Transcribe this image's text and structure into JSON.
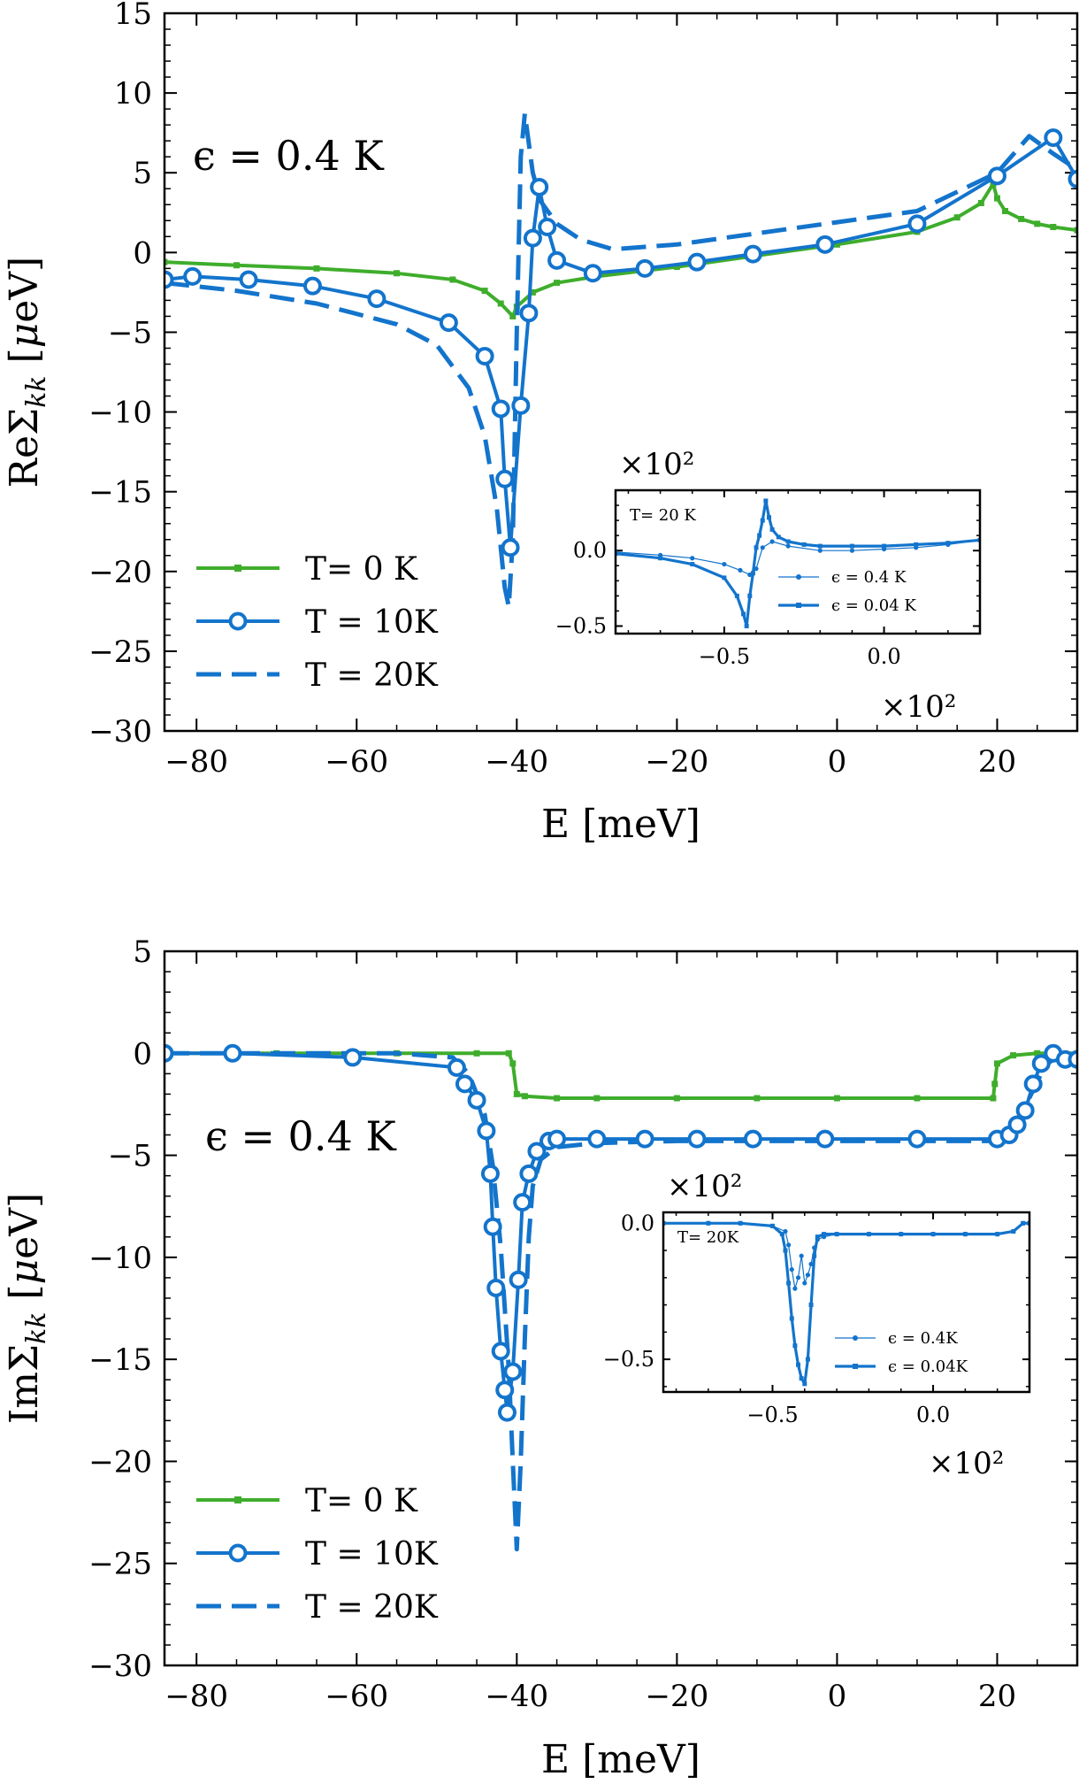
{
  "colors": {
    "green": "#3fad2c",
    "blue": "#1374cc",
    "axis": "#000000"
  },
  "chart_data": [
    {
      "type": "line",
      "xlabel": "E [meV]",
      "ylabel": "ReΣ_kk  [μeV]",
      "xlim": [
        -84,
        30
      ],
      "ylim": [
        -30,
        15
      ],
      "xticks": [
        -80,
        -60,
        -40,
        -20,
        0,
        20
      ],
      "xtick_labels": [
        "−80",
        "−60",
        "−40",
        "−20",
        "0",
        "20"
      ],
      "yticks": [
        15,
        10,
        5,
        0,
        -5,
        -10,
        -15,
        -20,
        -25,
        -30
      ],
      "ytick_labels": [
        "15",
        "10",
        "5",
        "0",
        "−5",
        "−10",
        "−15",
        "−20",
        "−25",
        "−30"
      ],
      "annotation": "ϵ = 0.4 K",
      "legend_position": "lower-left",
      "series": [
        {
          "name": "T= 0 K",
          "style": "solid-square",
          "color": "green",
          "x": [
            -84,
            -75,
            -65,
            -55,
            -48,
            -44,
            -42,
            -40.5,
            -40,
            -38,
            -35,
            -30,
            -20,
            -10,
            0,
            10,
            15,
            18,
            19.5,
            20,
            21,
            23,
            25,
            27,
            30
          ],
          "y": [
            -0.6,
            -0.8,
            -1.0,
            -1.3,
            -1.7,
            -2.4,
            -3.2,
            -4.0,
            -3.4,
            -2.5,
            -1.9,
            -1.5,
            -0.9,
            -0.2,
            0.5,
            1.3,
            2.2,
            3.1,
            4.3,
            3.4,
            2.6,
            2.1,
            1.8,
            1.6,
            1.4
          ]
        },
        {
          "name": "T = 10K",
          "style": "solid-circle",
          "color": "blue",
          "x": [
            -84,
            -80.5,
            -73.5,
            -65.5,
            -57.5,
            -48.5,
            -44,
            -42,
            -41.5,
            -40.8,
            -39.5,
            -38.5,
            -38,
            -37.2,
            -36.2,
            -35,
            -30.5,
            -24,
            -17.5,
            -10.5,
            -1.5,
            10,
            20,
            27,
            30
          ],
          "y": [
            -1.7,
            -1.5,
            -1.7,
            -2.1,
            -2.9,
            -4.4,
            -6.5,
            -9.8,
            -14.2,
            -18.5,
            -9.6,
            -3.8,
            0.9,
            4.1,
            1.6,
            -0.5,
            -1.3,
            -1.0,
            -0.6,
            -0.1,
            0.5,
            1.8,
            4.8,
            7.2,
            4.6
          ]
        },
        {
          "name": "T = 20K",
          "style": "dashed",
          "color": "blue",
          "x": [
            -84,
            -75,
            -65,
            -55,
            -50,
            -46,
            -44,
            -42.5,
            -41.5,
            -41,
            -40.5,
            -40,
            -39.5,
            -39,
            -38,
            -37,
            -35,
            -32,
            -28,
            -20,
            -10,
            0,
            10,
            20,
            24,
            27,
            30
          ],
          "y": [
            -1.9,
            -2.4,
            -3.2,
            -4.5,
            -5.8,
            -8.5,
            -11.5,
            -16.0,
            -21.0,
            -22.2,
            -18.0,
            -5.0,
            6.0,
            8.7,
            5.0,
            3.2,
            1.8,
            0.8,
            0.2,
            0.5,
            1.2,
            1.9,
            2.6,
            5.0,
            7.3,
            6.2,
            5.2
          ]
        }
      ],
      "inset": {
        "tag": "T= 20 K",
        "scale_label": "×10²",
        "xlim": [
          -0.84,
          0.3
        ],
        "ylim": [
          -0.55,
          0.4
        ],
        "xticks": [
          -0.5,
          0.0
        ],
        "xtick_labels": [
          "−0.5",
          "0.0"
        ],
        "yticks": [
          0.0,
          -0.5
        ],
        "ytick_labels": [
          "0.0",
          "−0.5"
        ],
        "legend_position": "lower-right",
        "series": [
          {
            "name": "ϵ = 0.4 K",
            "style": "thin-dot",
            "x": [
              -0.84,
              -0.7,
              -0.6,
              -0.5,
              -0.45,
              -0.42,
              -0.4,
              -0.38,
              -0.35,
              -0.3,
              -0.2,
              -0.1,
              0.0,
              0.1,
              0.2,
              0.3
            ],
            "y": [
              -0.01,
              -0.03,
              -0.05,
              -0.09,
              -0.13,
              -0.16,
              -0.12,
              0.02,
              0.06,
              0.03,
              0.0,
              0.0,
              0.01,
              0.02,
              0.04,
              0.07
            ]
          },
          {
            "name": "ϵ = 0.04 K",
            "style": "thick-square",
            "x": [
              -0.84,
              -0.7,
              -0.6,
              -0.5,
              -0.46,
              -0.44,
              -0.43,
              -0.42,
              -0.41,
              -0.4,
              -0.39,
              -0.38,
              -0.37,
              -0.36,
              -0.35,
              -0.33,
              -0.3,
              -0.25,
              -0.2,
              -0.1,
              0.0,
              0.1,
              0.2,
              0.3
            ],
            "y": [
              -0.02,
              -0.05,
              -0.09,
              -0.18,
              -0.3,
              -0.42,
              -0.5,
              -0.3,
              -0.15,
              0.02,
              0.1,
              0.2,
              0.33,
              0.22,
              0.14,
              0.09,
              0.06,
              0.04,
              0.03,
              0.03,
              0.03,
              0.04,
              0.05,
              0.07
            ]
          }
        ]
      }
    },
    {
      "type": "line",
      "xlabel": "E [meV]",
      "ylabel": "ImΣ_kk  [μeV]",
      "xlim": [
        -84,
        30
      ],
      "ylim": [
        -30,
        5
      ],
      "xticks": [
        -80,
        -60,
        -40,
        -20,
        0,
        20
      ],
      "xtick_labels": [
        "−80",
        "−60",
        "−40",
        "−20",
        "0",
        "20"
      ],
      "yticks": [
        5,
        0,
        -5,
        -10,
        -15,
        -20,
        -25,
        -30
      ],
      "ytick_labels": [
        "5",
        "0",
        "−5",
        "−10",
        "−15",
        "−20",
        "−25",
        "−30"
      ],
      "annotation": "ϵ = 0.4 K",
      "legend_position": "lower-left",
      "series": [
        {
          "name": "T= 0 K",
          "style": "solid-square",
          "color": "green",
          "x": [
            -84,
            -70,
            -55,
            -45,
            -41,
            -40.5,
            -40,
            -39,
            -35,
            -30,
            -20,
            -10,
            0,
            10,
            19.5,
            19.7,
            20,
            22,
            25,
            30
          ],
          "y": [
            0,
            0,
            0,
            0,
            0,
            -0.5,
            -2.0,
            -2.1,
            -2.2,
            -2.2,
            -2.2,
            -2.2,
            -2.2,
            -2.2,
            -2.2,
            -1.5,
            -0.5,
            -0.1,
            0,
            0
          ]
        },
        {
          "name": "T = 10K",
          "style": "solid-circle",
          "color": "blue",
          "x": [
            -84,
            -75.5,
            -60.5,
            -47.5,
            -46.5,
            -45,
            -43.8,
            -43.3,
            -43,
            -42.6,
            -42,
            -41.5,
            -41.2,
            -40.5,
            -39.8,
            -39.3,
            -38.5,
            -37.5,
            -36,
            -35,
            -30,
            -24,
            -17.5,
            -10.5,
            -1.5,
            10,
            20,
            21.5,
            22.5,
            23.5,
            24.5,
            25.5,
            27,
            28.5,
            30
          ],
          "y": [
            0,
            0,
            -0.2,
            -0.7,
            -1.5,
            -2.3,
            -3.8,
            -5.9,
            -8.5,
            -11.5,
            -14.6,
            -16.5,
            -17.6,
            -15.6,
            -11.1,
            -7.3,
            -5.9,
            -4.8,
            -4.3,
            -4.2,
            -4.2,
            -4.2,
            -4.2,
            -4.2,
            -4.2,
            -4.2,
            -4.2,
            -4.0,
            -3.5,
            -2.8,
            -1.5,
            -0.5,
            0.0,
            -0.3,
            -0.3
          ]
        },
        {
          "name": "T = 20K",
          "style": "dashed",
          "color": "blue",
          "x": [
            -84,
            -70,
            -55,
            -48,
            -46,
            -44,
            -43,
            -42,
            -41,
            -40.5,
            -40,
            -39.5,
            -39,
            -38.5,
            -38,
            -37,
            -35,
            -30,
            -20,
            -10,
            0,
            10,
            20,
            22,
            24,
            26,
            28,
            30
          ],
          "y": [
            0,
            0,
            0,
            -0.2,
            -1.0,
            -3.0,
            -5.5,
            -9.5,
            -15.5,
            -20.0,
            -24.3,
            -20.0,
            -14.0,
            -9.0,
            -6.5,
            -5.2,
            -4.6,
            -4.4,
            -4.3,
            -4.3,
            -4.3,
            -4.3,
            -4.3,
            -3.8,
            -2.2,
            -0.6,
            0,
            0
          ]
        }
      ],
      "inset": {
        "tag": "T= 20K",
        "scale_label": "×10²",
        "xlim": [
          -0.84,
          0.3
        ],
        "ylim": [
          -0.62,
          0.04
        ],
        "xticks": [
          -0.5,
          0.0
        ],
        "xtick_labels": [
          "−0.5",
          "0.0"
        ],
        "yticks": [
          0.0,
          -0.5
        ],
        "ytick_labels": [
          "0.0",
          "−0.5"
        ],
        "legend_position": "lower-right",
        "series": [
          {
            "name": "ϵ = 0.4K",
            "style": "thin-dot",
            "x": [
              -0.84,
              -0.7,
              -0.6,
              -0.5,
              -0.46,
              -0.45,
              -0.44,
              -0.43,
              -0.42,
              -0.41,
              -0.4,
              -0.39,
              -0.38,
              -0.37,
              -0.36,
              -0.34,
              -0.3,
              -0.2,
              -0.1,
              0.0,
              0.1,
              0.2,
              0.25,
              0.28,
              0.3
            ],
            "y": [
              0,
              0,
              0,
              -0.01,
              -0.03,
              -0.08,
              -0.17,
              -0.24,
              -0.2,
              -0.12,
              -0.22,
              -0.19,
              -0.15,
              -0.09,
              -0.06,
              -0.05,
              -0.04,
              -0.04,
              -0.04,
              -0.04,
              -0.04,
              -0.04,
              -0.03,
              0,
              0
            ]
          },
          {
            "name": "ϵ = 0.04K",
            "style": "thick-square",
            "x": [
              -0.84,
              -0.7,
              -0.6,
              -0.5,
              -0.47,
              -0.46,
              -0.45,
              -0.44,
              -0.43,
              -0.42,
              -0.41,
              -0.4,
              -0.39,
              -0.38,
              -0.37,
              -0.36,
              -0.34,
              -0.3,
              -0.2,
              -0.1,
              0.0,
              0.1,
              0.2,
              0.25,
              0.28,
              0.3
            ],
            "y": [
              0,
              0,
              0,
              -0.01,
              -0.04,
              -0.1,
              -0.22,
              -0.35,
              -0.45,
              -0.52,
              -0.57,
              -0.59,
              -0.5,
              -0.3,
              -0.12,
              -0.05,
              -0.04,
              -0.04,
              -0.04,
              -0.04,
              -0.04,
              -0.04,
              -0.04,
              -0.03,
              0,
              0
            ]
          }
        ]
      }
    }
  ]
}
